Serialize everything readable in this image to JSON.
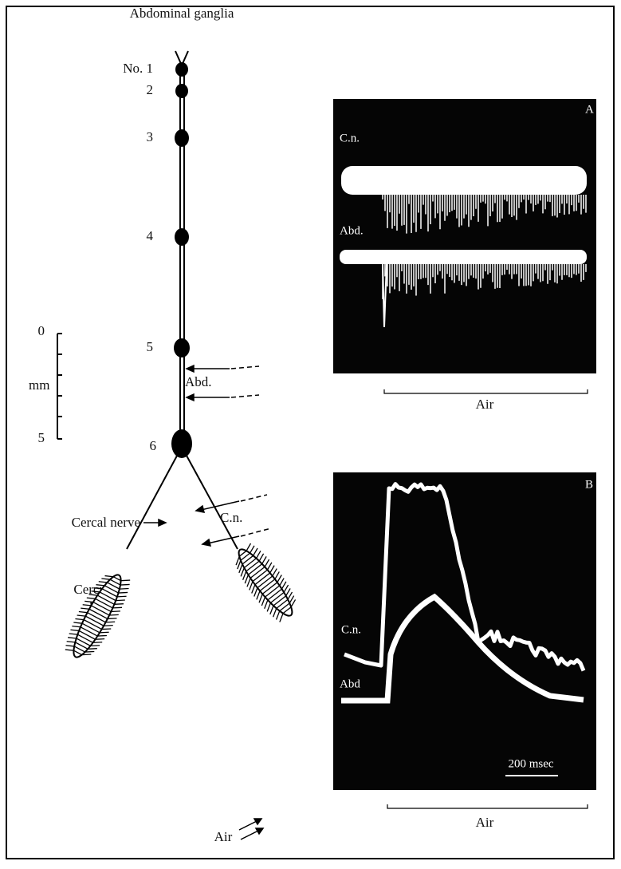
{
  "header": {
    "title": "Abdominal ganglia"
  },
  "ganglia": [
    "No. 1",
    "2",
    "3",
    "4",
    "5",
    "6"
  ],
  "scale": {
    "top": "0",
    "bottom": "5",
    "unit": "mm"
  },
  "recording_sites": {
    "abdominal": "Abd.",
    "cercal": "C.n."
  },
  "labels": {
    "cercal_nerve": "Cercal nerve",
    "cercus": "Cercus",
    "air": "Air"
  },
  "panels": [
    {
      "label": "A",
      "traces": [
        "C.n.",
        "Abd."
      ],
      "stimulus": "Air"
    },
    {
      "label": "B",
      "traces": [
        "C.n.",
        "Abd"
      ],
      "scale_bar": "200 msec",
      "stimulus": "Air"
    }
  ]
}
